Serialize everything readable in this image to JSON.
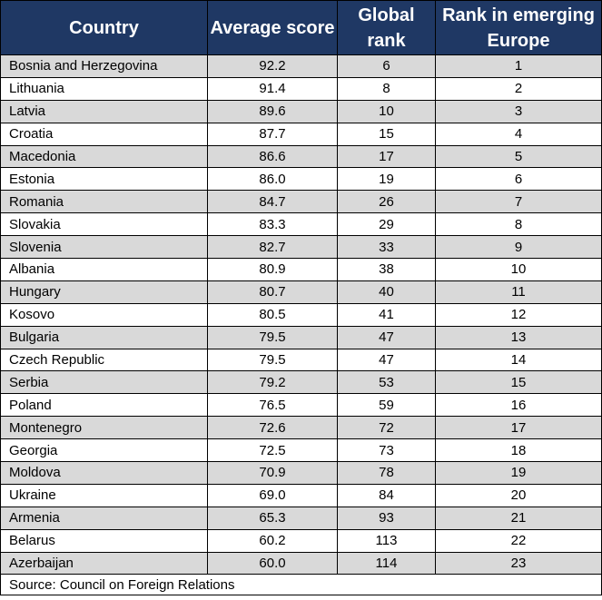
{
  "headers": {
    "country": "Country",
    "average_score": "Average score",
    "global_rank": "Global rank",
    "rank_emerging_europe": "Rank in emerging Europe"
  },
  "rows": [
    {
      "country": "Bosnia and Herzegovina",
      "score": "92.2",
      "global_rank": "6",
      "emerging_rank": "1"
    },
    {
      "country": "Lithuania",
      "score": "91.4",
      "global_rank": "8",
      "emerging_rank": "2"
    },
    {
      "country": "Latvia",
      "score": "89.6",
      "global_rank": "10",
      "emerging_rank": "3"
    },
    {
      "country": "Croatia",
      "score": "87.7",
      "global_rank": "15",
      "emerging_rank": "4"
    },
    {
      "country": "Macedonia",
      "score": "86.6",
      "global_rank": "17",
      "emerging_rank": "5"
    },
    {
      "country": "Estonia",
      "score": "86.0",
      "global_rank": "19",
      "emerging_rank": "6"
    },
    {
      "country": "Romania",
      "score": "84.7",
      "global_rank": "26",
      "emerging_rank": "7"
    },
    {
      "country": "Slovakia",
      "score": "83.3",
      "global_rank": "29",
      "emerging_rank": "8"
    },
    {
      "country": "Slovenia",
      "score": "82.7",
      "global_rank": "33",
      "emerging_rank": "9"
    },
    {
      "country": "Albania",
      "score": "80.9",
      "global_rank": "38",
      "emerging_rank": "10"
    },
    {
      "country": "Hungary",
      "score": "80.7",
      "global_rank": "40",
      "emerging_rank": "11"
    },
    {
      "country": "Kosovo",
      "score": "80.5",
      "global_rank": "41",
      "emerging_rank": "12"
    },
    {
      "country": "Bulgaria",
      "score": "79.5",
      "global_rank": "47",
      "emerging_rank": "13"
    },
    {
      "country": "Czech Republic",
      "score": "79.5",
      "global_rank": "47",
      "emerging_rank": "14"
    },
    {
      "country": "Serbia",
      "score": "79.2",
      "global_rank": "53",
      "emerging_rank": "15"
    },
    {
      "country": "Poland",
      "score": "76.5",
      "global_rank": "59",
      "emerging_rank": "16"
    },
    {
      "country": "Montenegro",
      "score": "72.6",
      "global_rank": "72",
      "emerging_rank": "17"
    },
    {
      "country": "Georgia",
      "score": "72.5",
      "global_rank": "73",
      "emerging_rank": "18"
    },
    {
      "country": "Moldova",
      "score": "70.9",
      "global_rank": "78",
      "emerging_rank": "19"
    },
    {
      "country": "Ukraine",
      "score": "69.0",
      "global_rank": "84",
      "emerging_rank": "20"
    },
    {
      "country": "Armenia",
      "score": "65.3",
      "global_rank": "93",
      "emerging_rank": "21"
    },
    {
      "country": "Belarus",
      "score": "60.2",
      "global_rank": "113",
      "emerging_rank": "22"
    },
    {
      "country": "Azerbaijan",
      "score": "60.0",
      "global_rank": "114",
      "emerging_rank": "23"
    }
  ],
  "source": "Source: Council on Foreign Relations",
  "colors": {
    "header_bg": "#1f3864",
    "header_text": "#ffffff",
    "stripe_bg": "#d9d9d9"
  }
}
